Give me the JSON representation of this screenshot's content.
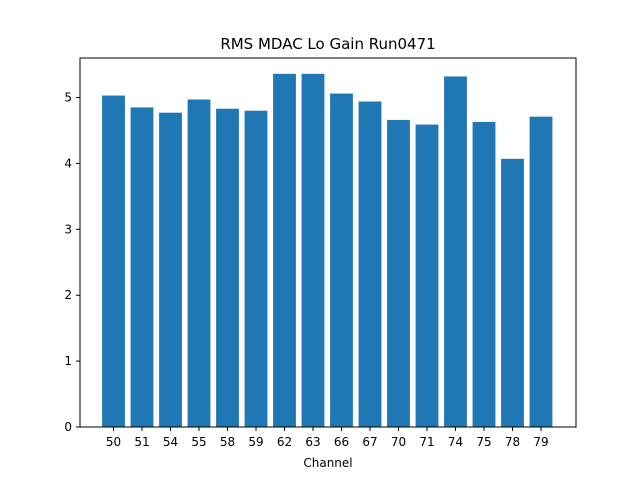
{
  "chart_data": {
    "type": "bar",
    "title": "RMS MDAC Lo Gain Run0471",
    "xlabel": "Channel",
    "ylabel": "",
    "categories": [
      "50",
      "51",
      "54",
      "55",
      "58",
      "59",
      "62",
      "63",
      "66",
      "67",
      "70",
      "71",
      "74",
      "75",
      "78",
      "79"
    ],
    "values": [
      5.03,
      4.85,
      4.77,
      4.97,
      4.83,
      4.8,
      5.36,
      5.36,
      5.06,
      4.94,
      4.66,
      4.59,
      5.32,
      4.63,
      4.07,
      4.71
    ],
    "ylim": [
      0,
      5.6
    ],
    "yticks": [
      0,
      1,
      2,
      3,
      4,
      5
    ],
    "bar_color": "#1f77b4",
    "grid": false,
    "legend": "none"
  }
}
